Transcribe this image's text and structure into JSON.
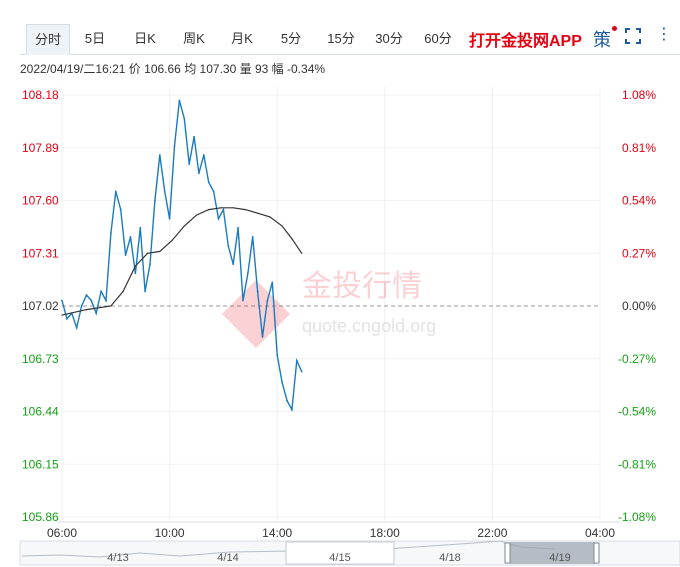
{
  "tabs": [
    {
      "label": "分时",
      "active": true
    },
    {
      "label": "5日"
    },
    {
      "label": "日K"
    },
    {
      "label": "周K"
    },
    {
      "label": "月K"
    },
    {
      "label": "5分"
    },
    {
      "label": "15分"
    },
    {
      "label": "30分"
    },
    {
      "label": "60分"
    }
  ],
  "promo_label": "打开金投网APP",
  "strategy_label": "策",
  "info": {
    "datetime": "2022/04/19/二16:21",
    "price_label": "价",
    "price": "106.66",
    "avg_label": "均",
    "avg": "107.30",
    "vol_label": "量",
    "vol": "93",
    "chg_label": "幅",
    "chg": "-0.34%"
  },
  "watermark": {
    "brand": "金投行情",
    "url": "quote.cngold.org"
  },
  "colors": {
    "up": "#e60012",
    "down": "#16a116",
    "neutral": "#333333",
    "price_line": "#1a7bbf",
    "avg_line": "#333333"
  },
  "chart_data": {
    "type": "line",
    "base_price": 107.02,
    "ylim": [
      105.86,
      108.18
    ],
    "y_ticks": [
      "108.18",
      "107.89",
      "107.60",
      "107.31",
      "107.02",
      "106.73",
      "106.44",
      "106.15",
      "105.86"
    ],
    "pct_ticks": [
      "1.08%",
      "0.81%",
      "0.54%",
      "0.27%",
      "0.00%",
      "-0.27%",
      "-0.54%",
      "-0.81%",
      "-1.08%"
    ],
    "x_ticks": [
      "06:00",
      "10:00",
      "14:00",
      "18:00",
      "22:00",
      "04:00"
    ],
    "x_range_hours": [
      6,
      28
    ],
    "series": [
      {
        "values_x": [
          6.0,
          6.2,
          6.4,
          6.6,
          6.8,
          7.0,
          7.2,
          7.4,
          7.6,
          7.8,
          8.0,
          8.2,
          8.4,
          8.6,
          8.8,
          9.0,
          9.2,
          9.4,
          9.6,
          9.8,
          10.0,
          10.2,
          10.4,
          10.6,
          10.8,
          11.0,
          11.2,
          11.4,
          11.6,
          11.8,
          12.0,
          12.2,
          12.4,
          12.6,
          12.8,
          13.0,
          13.2,
          13.4,
          13.6,
          13.8,
          14.0,
          14.2,
          14.4,
          14.6,
          14.8,
          15.0,
          15.2,
          15.4,
          15.6,
          15.8
        ],
        "values": [
          107.05,
          106.95,
          106.98,
          106.9,
          107.02,
          107.08,
          107.05,
          106.98,
          107.1,
          107.05,
          107.42,
          107.65,
          107.55,
          107.3,
          107.4,
          107.2,
          107.45,
          107.1,
          107.25,
          107.6,
          107.85,
          107.65,
          107.5,
          107.9,
          108.15,
          108.05,
          107.8,
          107.95,
          107.75,
          107.85,
          107.7,
          107.65,
          107.5,
          107.55,
          107.35,
          107.25,
          107.45,
          107.05,
          107.2,
          107.4,
          107.1,
          106.85,
          107.05,
          107.15,
          106.75,
          106.6,
          106.5,
          106.45,
          106.72,
          106.66
        ]
      },
      {
        "values_x": [
          6.0,
          7.0,
          8.0,
          8.5,
          9.0,
          9.5,
          10.0,
          10.5,
          11.0,
          11.5,
          12.0,
          12.5,
          13.0,
          13.5,
          14.0,
          14.5,
          15.0,
          15.4,
          15.8
        ],
        "values": [
          106.97,
          107.0,
          107.02,
          107.1,
          107.24,
          107.31,
          107.32,
          107.38,
          107.46,
          107.52,
          107.55,
          107.56,
          107.56,
          107.55,
          107.53,
          107.51,
          107.46,
          107.39,
          107.31
        ]
      }
    ]
  },
  "nav": {
    "labels": [
      "4/13",
      "4/14",
      "4/15",
      "4/18",
      "4/19"
    ]
  }
}
